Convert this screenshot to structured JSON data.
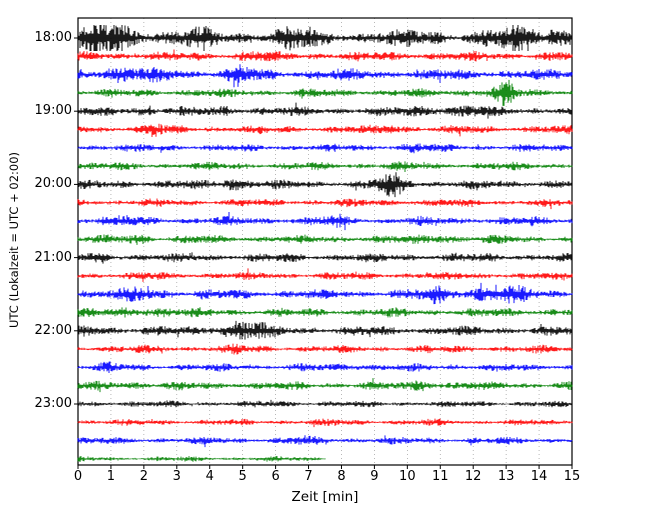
{
  "chart_data": {
    "type": "line",
    "subtype": "seismogram_dayplot",
    "title": "",
    "xlabel": "Zeit  [min]",
    "ylabel": "UTC (Lokalzeit = UTC + 02:00)",
    "xlim": [
      0,
      15
    ],
    "x_ticks": [
      0,
      1,
      2,
      3,
      4,
      5,
      6,
      7,
      8,
      9,
      10,
      11,
      12,
      13,
      14,
      15
    ],
    "x_tick_labels": [
      "0",
      "1",
      "2",
      "3",
      "4",
      "5",
      "6",
      "7",
      "8",
      "9",
      "10",
      "11",
      "12",
      "13",
      "14",
      "15"
    ],
    "y_tick_labels": [
      "18:00",
      "19:00",
      "20:00",
      "21:00",
      "22:00",
      "23:00"
    ],
    "y_label_rows": [
      0,
      4,
      8,
      12,
      16,
      20
    ],
    "grid": "vertical-dotted",
    "legend": "none",
    "minutes_per_row": 15,
    "trace_duration_min_default": 15,
    "trace_color_cycle": [
      "black",
      "red",
      "blue",
      "green"
    ],
    "colors": {
      "black": "#000000",
      "red": "#ff0000",
      "blue": "#0000ff",
      "green": "#008000"
    },
    "traces": [
      {
        "start": "18:00",
        "color": "black",
        "amp": 5.0,
        "bursts": [
          {
            "t": 0.8,
            "w": 1.6,
            "a": 1.5
          },
          {
            "t": 3.5,
            "w": 1.0,
            "a": 0.6
          },
          {
            "t": 6.5,
            "w": 1.0,
            "a": 0.7
          },
          {
            "t": 10.5,
            "w": 0.8,
            "a": 0.5
          },
          {
            "t": 13.8,
            "w": 1.4,
            "a": 1.4
          }
        ]
      },
      {
        "start": "18:15",
        "color": "red",
        "amp": 3.2,
        "bursts": [
          {
            "t": 5.3,
            "w": 0.5,
            "a": 0.8
          }
        ]
      },
      {
        "start": "18:30",
        "color": "blue",
        "amp": 3.8,
        "bursts": [
          {
            "t": 1.2,
            "w": 1.0,
            "a": 0.9
          },
          {
            "t": 2.8,
            "w": 0.6,
            "a": 0.5
          },
          {
            "t": 4.8,
            "w": 0.8,
            "a": 0.8
          }
        ]
      },
      {
        "start": "18:45",
        "color": "green",
        "amp": 2.8,
        "bursts": [
          {
            "t": 12.3,
            "w": 0.6,
            "a": 0.8
          },
          {
            "t": 13.0,
            "w": 0.35,
            "a": 2.6
          }
        ]
      },
      {
        "start": "19:00",
        "color": "black",
        "amp": 3.2,
        "bursts": [
          {
            "t": 2.0,
            "w": 0.5,
            "a": 0.8
          },
          {
            "t": 4.6,
            "w": 0.4,
            "a": 0.7
          },
          {
            "t": 10.8,
            "w": 1.0,
            "a": 0.8
          },
          {
            "t": 12.0,
            "w": 0.5,
            "a": 0.6
          }
        ]
      },
      {
        "start": "19:15",
        "color": "red",
        "amp": 2.8,
        "bursts": [
          {
            "t": 2.3,
            "w": 0.3,
            "a": 1.6
          },
          {
            "t": 9.6,
            "w": 0.4,
            "a": 1.2
          }
        ]
      },
      {
        "start": "19:30",
        "color": "blue",
        "amp": 2.6,
        "bursts": [
          {
            "t": 10.2,
            "w": 0.5,
            "a": 0.8
          }
        ]
      },
      {
        "start": "19:45",
        "color": "green",
        "amp": 2.6,
        "bursts": [
          {
            "t": 9.7,
            "w": 0.4,
            "a": 0.7
          }
        ]
      },
      {
        "start": "20:00",
        "color": "black",
        "amp": 3.0,
        "bursts": [
          {
            "t": 1.5,
            "w": 0.4,
            "a": 0.5
          },
          {
            "t": 4.7,
            "w": 0.7,
            "a": 1.8
          },
          {
            "t": 9.6,
            "w": 0.8,
            "a": 1.6
          }
        ]
      },
      {
        "start": "20:15",
        "color": "red",
        "amp": 2.6,
        "bursts": []
      },
      {
        "start": "20:30",
        "color": "blue",
        "amp": 3.0,
        "bursts": [
          {
            "t": 1.0,
            "w": 0.8,
            "a": 0.5
          },
          {
            "t": 7.8,
            "w": 0.5,
            "a": 0.7
          }
        ]
      },
      {
        "start": "20:45",
        "color": "green",
        "amp": 2.8,
        "bursts": [
          {
            "t": 1.8,
            "w": 0.5,
            "a": 1.0
          },
          {
            "t": 11.0,
            "w": 0.6,
            "a": 1.1
          }
        ]
      },
      {
        "start": "21:00",
        "color": "black",
        "amp": 3.0,
        "bursts": [
          {
            "t": 0.7,
            "w": 0.5,
            "a": 0.9
          }
        ]
      },
      {
        "start": "21:15",
        "color": "red",
        "amp": 2.6,
        "bursts": []
      },
      {
        "start": "21:30",
        "color": "blue",
        "amp": 3.2,
        "bursts": [
          {
            "t": 2.0,
            "w": 0.8,
            "a": 0.9
          },
          {
            "t": 10.8,
            "w": 0.8,
            "a": 0.8
          },
          {
            "t": 12.5,
            "w": 1.8,
            "a": 1.2
          }
        ]
      },
      {
        "start": "21:45",
        "color": "green",
        "amp": 3.0,
        "bursts": [
          {
            "t": 2.0,
            "w": 1.0,
            "a": 0.9
          }
        ]
      },
      {
        "start": "22:00",
        "color": "black",
        "amp": 3.2,
        "bursts": [
          {
            "t": 0.5,
            "w": 0.6,
            "a": 0.6
          },
          {
            "t": 4.9,
            "w": 1.1,
            "a": 1.9
          }
        ]
      },
      {
        "start": "22:15",
        "color": "red",
        "amp": 2.6,
        "bursts": [
          {
            "t": 4.8,
            "w": 0.3,
            "a": 0.8
          }
        ]
      },
      {
        "start": "22:30",
        "color": "blue",
        "amp": 2.6,
        "bursts": [
          {
            "t": 1.0,
            "w": 0.4,
            "a": 0.5
          },
          {
            "t": 8.5,
            "w": 0.6,
            "a": 0.7
          }
        ]
      },
      {
        "start": "22:45",
        "color": "green",
        "amp": 2.8,
        "bursts": [
          {
            "t": 1.5,
            "w": 0.7,
            "a": 0.6
          },
          {
            "t": 10.5,
            "w": 0.4,
            "a": 1.5
          }
        ]
      },
      {
        "start": "23:00",
        "color": "black",
        "amp": 2.2,
        "bursts": []
      },
      {
        "start": "23:15",
        "color": "red",
        "amp": 2.2,
        "bursts": []
      },
      {
        "start": "23:30",
        "color": "blue",
        "amp": 2.4,
        "bursts": [
          {
            "t": 6.8,
            "w": 0.5,
            "a": 0.6
          }
        ]
      },
      {
        "start": "23:45",
        "color": "green",
        "amp": 1.8,
        "duration_min": 7.5,
        "bursts": []
      }
    ]
  }
}
